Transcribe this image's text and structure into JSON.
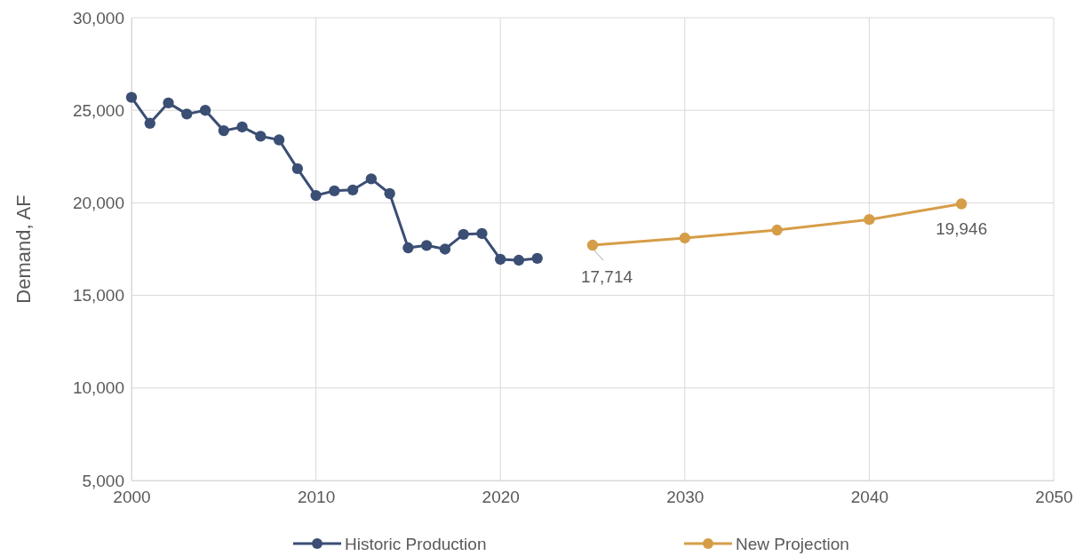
{
  "chart_data": {
    "type": "line",
    "ylabel": "Demand, AF",
    "xlim": [
      2000,
      2050
    ],
    "xticks": [
      2000,
      2010,
      2020,
      2030,
      2040,
      2050
    ],
    "ylim": [
      5000,
      30000
    ],
    "yticks": [
      {
        "value": 5000,
        "label": "5,000"
      },
      {
        "value": 10000,
        "label": "10,000"
      },
      {
        "value": 15000,
        "label": "15,000"
      },
      {
        "value": 20000,
        "label": "20,000"
      },
      {
        "value": 25000,
        "label": "25,000"
      },
      {
        "value": 30000,
        "label": "30,000"
      }
    ],
    "grid": true,
    "legend": "bottom",
    "marker": "circle",
    "line_style": "solid",
    "series": [
      {
        "name": "Historic Production",
        "color": "#3b4e74",
        "x": [
          2000,
          2001,
          2002,
          2003,
          2004,
          2005,
          2006,
          2007,
          2008,
          2009,
          2010,
          2011,
          2012,
          2013,
          2014,
          2015,
          2016,
          2017,
          2018,
          2019,
          2020,
          2021,
          2022
        ],
        "values": [
          25700,
          24300,
          25400,
          24800,
          25000,
          23900,
          24100,
          23600,
          23400,
          21850,
          20400,
          20650,
          20700,
          21300,
          20500,
          17570,
          17700,
          17500,
          18300,
          18340,
          16950,
          16900,
          17000
        ]
      },
      {
        "name": "New Projection",
        "color": "#d69d48",
        "x": [
          2025,
          2030,
          2035,
          2040,
          2045
        ],
        "values": [
          17714,
          18100,
          18530,
          19100,
          19946
        ],
        "value_labels": [
          "17,714",
          null,
          null,
          null,
          "19,946"
        ]
      }
    ]
  }
}
